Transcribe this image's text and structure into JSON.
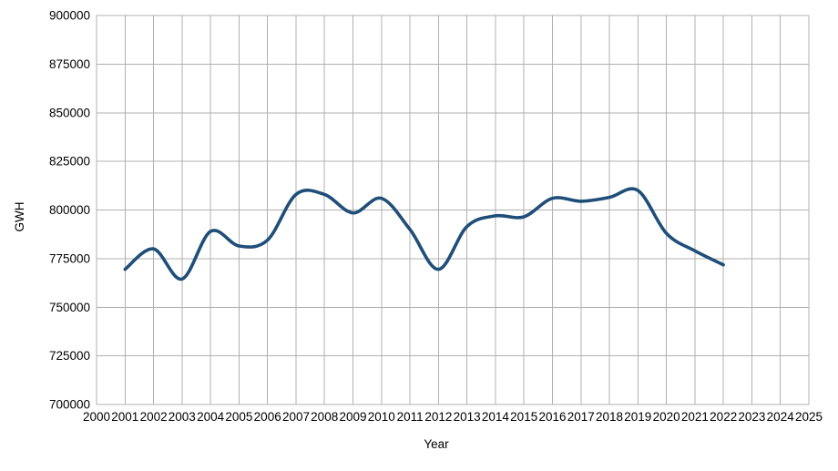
{
  "chart_data": {
    "type": "line",
    "title": "",
    "xlabel": "Year",
    "ylabel": "GWH",
    "series": [
      {
        "name": "GWH",
        "x": [
          2001,
          2002,
          2003,
          2004,
          2005,
          2006,
          2007,
          2008,
          2009,
          2010,
          2011,
          2012,
          2013,
          2014,
          2015,
          2016,
          2017,
          2018,
          2019,
          2020,
          2021,
          2022
        ],
        "values": [
          769500,
          780000,
          764500,
          789000,
          781500,
          784500,
          808000,
          808000,
          798500,
          806000,
          790000,
          769500,
          791500,
          797000,
          796500,
          806000,
          804500,
          806500,
          810000,
          788000,
          779000,
          771800
        ]
      }
    ],
    "xlim": [
      2000,
      2025
    ],
    "ylim": [
      700000,
      900000
    ],
    "x_tick_step": 1,
    "y_tick_step": 25000,
    "x_tick_labels": [
      "2000",
      "2001",
      "2002",
      "2003",
      "2004",
      "2005",
      "2006",
      "2007",
      "2008",
      "2009",
      "2010",
      "2011",
      "2012",
      "2013",
      "2014",
      "2015",
      "2016",
      "2017",
      "2018",
      "2019",
      "2020",
      "2021",
      "2022",
      "2023",
      "2024",
      "2025"
    ],
    "y_tick_labels": [
      "700000",
      "725000",
      "750000",
      "775000",
      "800000",
      "825000",
      "850000",
      "875000",
      "900000"
    ],
    "grid": "both",
    "legend_position": "none",
    "smooth_line": true,
    "line_color": "#1f4e79",
    "grid_color": "#b0b0b0",
    "text_color": "#000000",
    "background_color": "#ffffff"
  }
}
